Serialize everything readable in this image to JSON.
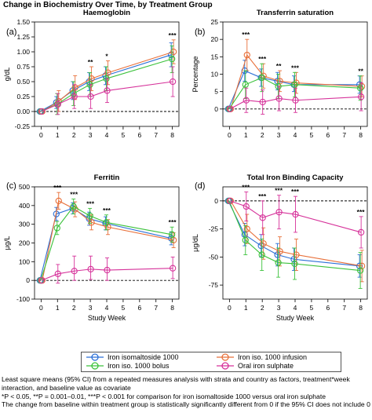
{
  "figure": {
    "title": "Change in Biochemistry Over Time, by Treatment Group",
    "x_axis_label": "Study Week"
  },
  "legend": [
    {
      "name": "Iron isomaltoside 1000",
      "color": "#2b6fd6"
    },
    {
      "name": "Iron iso. 1000 infusion",
      "color": "#e8703a"
    },
    {
      "name": "Iron iso. 1000 bolus",
      "color": "#3cc23c"
    },
    {
      "name": "Oral iron sulphate",
      "color": "#d6329a"
    }
  ],
  "footnote": [
    "Least square means (95% CI) from a repeated measures analysis with strata and country as factors, treatment*week interaction, and baseline value as covariate",
    "*P < 0.05, **P = 0.001–0.01, ***P < 0.001 for comparison for iron isomaltoside 1000 versus oral iron sulphate",
    "The change from baseline within treatment group is statistically significantly different from 0 if the 95% CI does not include 0"
  ],
  "chart_data": [
    {
      "panel": "(a)",
      "type": "line",
      "title": "Haemoglobin",
      "ylabel": "g/dL",
      "x": [
        0,
        1,
        2,
        3,
        4,
        8
      ],
      "xticks": [
        "0",
        "1",
        "2",
        "3",
        "4",
        "5",
        "6",
        "7",
        "8"
      ],
      "ylim": [
        -0.25,
        1.5
      ],
      "yticks": [
        "-0.25",
        "0.00",
        "0.25",
        "0.50",
        "0.75",
        "1.00",
        "1.25",
        "1.50"
      ],
      "reference_line": 0,
      "series": [
        {
          "values": [
            0,
            0.15,
            0.35,
            0.5,
            0.6,
            0.95
          ],
          "lower": [
            0,
            0.05,
            0.2,
            0.35,
            0.45,
            0.75
          ],
          "upper": [
            0,
            0.25,
            0.5,
            0.65,
            0.75,
            1.15
          ]
        },
        {
          "values": [
            0,
            0.17,
            0.4,
            0.55,
            0.65,
            1.0
          ],
          "lower": [
            0,
            0.0,
            0.2,
            0.35,
            0.45,
            0.8
          ],
          "upper": [
            0,
            0.35,
            0.6,
            0.75,
            0.85,
            1.2
          ]
        },
        {
          "values": [
            0,
            0.12,
            0.3,
            0.45,
            0.55,
            0.88
          ],
          "lower": [
            0,
            -0.05,
            0.1,
            0.25,
            0.35,
            0.65
          ],
          "upper": [
            0,
            0.3,
            0.5,
            0.65,
            0.75,
            1.1
          ]
        },
        {
          "values": [
            0,
            0.12,
            0.25,
            0.25,
            0.35,
            0.5
          ],
          "lower": [
            0,
            -0.05,
            0.05,
            0.05,
            0.15,
            0.25
          ],
          "upper": [
            0,
            0.3,
            0.45,
            0.45,
            0.55,
            0.75
          ]
        }
      ],
      "annotations": [
        {
          "x": 3,
          "text": "**"
        },
        {
          "x": 4,
          "text": "*"
        },
        {
          "x": 8,
          "text": "***"
        }
      ]
    },
    {
      "panel": "(b)",
      "type": "line",
      "title": "Transferrin saturation",
      "ylabel": "Percentage",
      "x": [
        0,
        1,
        2,
        3,
        4,
        8
      ],
      "xticks": [
        "0",
        "1",
        "2",
        "3",
        "4",
        "5",
        "6",
        "7",
        "8"
      ],
      "ylim": [
        -5,
        25
      ],
      "yticks": [
        "0",
        "5",
        "10",
        "15",
        "20",
        "25"
      ],
      "reference_line": 0,
      "series": [
        {
          "values": [
            0,
            11,
            9,
            8,
            7,
            7
          ],
          "lower": [
            0,
            8,
            6.5,
            5.5,
            5,
            4.5
          ],
          "upper": [
            0,
            14,
            11.5,
            10.5,
            9.5,
            9.5
          ]
        },
        {
          "values": [
            0,
            15.5,
            9.5,
            8,
            7.5,
            6.5
          ],
          "lower": [
            0,
            11,
            6,
            5,
            4.5,
            3.5
          ],
          "upper": [
            0,
            20,
            13,
            11,
            10.5,
            9.5
          ]
        },
        {
          "values": [
            0,
            7,
            9,
            6.5,
            7,
            6
          ],
          "lower": [
            0,
            3,
            5,
            3,
            3.5,
            2.5
          ],
          "upper": [
            0,
            11,
            13,
            10,
            10.5,
            9.5
          ]
        },
        {
          "values": [
            0,
            2.5,
            2,
            3,
            2.5,
            3.5
          ],
          "lower": [
            0,
            -1,
            -1.5,
            -0.5,
            -1,
            -0.5
          ],
          "upper": [
            0,
            6,
            5.5,
            6.5,
            6,
            7.5
          ]
        }
      ],
      "annotations": [
        {
          "x": 1,
          "text": "***"
        },
        {
          "x": 2,
          "text": "***"
        },
        {
          "x": 3,
          "text": "**"
        },
        {
          "x": 4,
          "text": "***"
        },
        {
          "x": 8,
          "text": "**"
        }
      ]
    },
    {
      "panel": "(c)",
      "type": "line",
      "title": "Ferritin",
      "ylabel": "μg/L",
      "x": [
        0,
        1,
        2,
        3,
        4,
        8
      ],
      "xticks": [
        "0",
        "1",
        "2",
        "3",
        "4",
        "5",
        "6",
        "7",
        "8"
      ],
      "ylim": [
        -100,
        500
      ],
      "yticks": [
        "-100",
        "0",
        "100",
        "200",
        "300",
        "400",
        "500"
      ],
      "reference_line": 0,
      "series": [
        {
          "values": [
            0,
            355,
            385,
            330,
            305,
            225
          ],
          "lower": [
            0,
            320,
            355,
            295,
            270,
            190
          ],
          "upper": [
            0,
            390,
            415,
            365,
            340,
            260
          ]
        },
        {
          "values": [
            0,
            425,
            380,
            310,
            285,
            215
          ],
          "lower": [
            0,
            380,
            340,
            270,
            245,
            175
          ],
          "upper": [
            0,
            470,
            420,
            350,
            325,
            255
          ]
        },
        {
          "values": [
            0,
            280,
            395,
            345,
            310,
            245
          ],
          "lower": [
            0,
            245,
            355,
            305,
            270,
            205
          ],
          "upper": [
            0,
            315,
            435,
            385,
            350,
            285
          ]
        },
        {
          "values": [
            0,
            35,
            50,
            60,
            55,
            65
          ],
          "lower": [
            0,
            -15,
            0,
            5,
            0,
            10
          ],
          "upper": [
            0,
            85,
            130,
            130,
            120,
            125
          ]
        }
      ],
      "annotations": [
        {
          "x": 1,
          "text": "***"
        },
        {
          "x": 2,
          "text": "***"
        },
        {
          "x": 3,
          "text": "***"
        },
        {
          "x": 4,
          "text": "***"
        },
        {
          "x": 8,
          "text": "***"
        }
      ]
    },
    {
      "panel": "(d)",
      "type": "line",
      "title": "Total Iron Binding Capacity",
      "ylabel": "μg/dL",
      "x": [
        0,
        1,
        2,
        3,
        4,
        8
      ],
      "xticks": [
        "0",
        "1",
        "2",
        "3",
        "4",
        "5",
        "6",
        "7",
        "8"
      ],
      "ylim": [
        -87.5,
        12.5
      ],
      "yticks": [
        "-75",
        "-50",
        "-25",
        "0"
      ],
      "reference_line": 0,
      "series": [
        {
          "values": [
            0,
            -30,
            -40,
            -48,
            -52,
            -58
          ],
          "lower": [
            0,
            -40,
            -50,
            -58,
            -62,
            -68
          ],
          "upper": [
            0,
            -20,
            -30,
            -38,
            -42,
            -48
          ]
        },
        {
          "values": [
            0,
            -25,
            -38,
            -45,
            -48,
            -58
          ],
          "lower": [
            0,
            -38,
            -52,
            -58,
            -62,
            -72
          ],
          "upper": [
            0,
            -12,
            -24,
            -32,
            -34,
            -44
          ]
        },
        {
          "values": [
            0,
            -35,
            -48,
            -55,
            -56,
            -62
          ],
          "lower": [
            0,
            -48,
            -62,
            -68,
            -70,
            -78
          ],
          "upper": [
            0,
            -22,
            -34,
            -42,
            -42,
            -46
          ]
        },
        {
          "values": [
            0,
            -5,
            -15,
            -10,
            -12,
            -28
          ],
          "lower": [
            0,
            -18,
            -30,
            -25,
            -28,
            -42
          ],
          "upper": [
            0,
            8,
            0,
            5,
            4,
            -14
          ]
        }
      ],
      "annotations": [
        {
          "x": 1,
          "text": "***"
        },
        {
          "x": 2,
          "text": "***"
        },
        {
          "x": 3,
          "text": "***"
        },
        {
          "x": 4,
          "text": "***"
        },
        {
          "x": 8,
          "text": "***"
        }
      ]
    }
  ]
}
